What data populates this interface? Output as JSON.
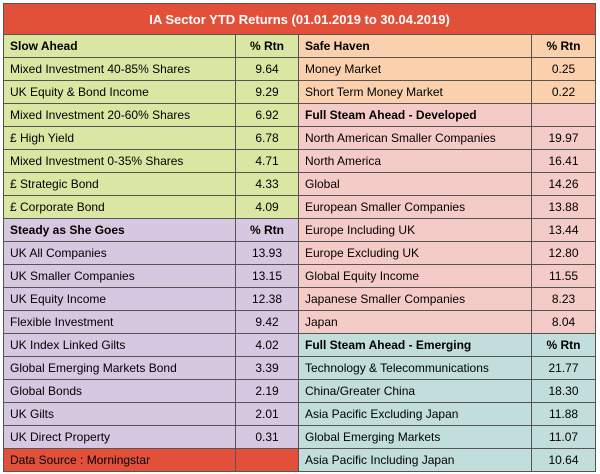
{
  "title": "IA Sector YTD Returns  (01.01.2019 to 30.04.2019)",
  "footer": "Data Source : Morningstar",
  "colors": {
    "title_bg": "#e2503a",
    "slow_ahead": "#d9e7a3",
    "steady": "#d7c8e2",
    "safe_haven": "#fbd0ad",
    "developed": "#f4cbc6",
    "emerging": "#c1dedc"
  },
  "left": [
    {
      "kind": "header",
      "label": "Slow Ahead",
      "rtn": "% Rtn",
      "color": "green"
    },
    {
      "kind": "row",
      "label": "Mixed Investment 40-85% Shares",
      "rtn": "9.64",
      "color": "green"
    },
    {
      "kind": "row",
      "label": "UK Equity & Bond Income",
      "rtn": "9.29",
      "color": "green"
    },
    {
      "kind": "row",
      "label": "Mixed Investment 20-60% Shares",
      "rtn": "6.92",
      "color": "green"
    },
    {
      "kind": "row",
      "label": "£ High Yield",
      "rtn": "6.78",
      "color": "green"
    },
    {
      "kind": "row",
      "label": "Mixed Investment 0-35% Shares",
      "rtn": "4.71",
      "color": "green"
    },
    {
      "kind": "row",
      "label": "£ Strategic Bond",
      "rtn": "4.33",
      "color": "green"
    },
    {
      "kind": "row",
      "label": "£ Corporate Bond",
      "rtn": "4.09",
      "color": "green"
    },
    {
      "kind": "header",
      "label": "Steady as She Goes",
      "rtn": "% Rtn",
      "color": "purple"
    },
    {
      "kind": "row",
      "label": "UK All Companies",
      "rtn": "13.93",
      "color": "purple"
    },
    {
      "kind": "row",
      "label": "UK Smaller Companies",
      "rtn": "13.15",
      "color": "purple"
    },
    {
      "kind": "row",
      "label": "UK Equity Income",
      "rtn": "12.38",
      "color": "purple"
    },
    {
      "kind": "row",
      "label": "Flexible Investment",
      "rtn": "9.42",
      "color": "purple"
    },
    {
      "kind": "row",
      "label": "UK Index Linked Gilts",
      "rtn": "4.02",
      "color": "purple"
    },
    {
      "kind": "row",
      "label": "Global Emerging Markets Bond",
      "rtn": "3.39",
      "color": "purple"
    },
    {
      "kind": "row",
      "label": "Global Bonds",
      "rtn": "2.19",
      "color": "purple"
    },
    {
      "kind": "row",
      "label": "UK Gilts",
      "rtn": "2.01",
      "color": "purple"
    },
    {
      "kind": "row",
      "label": "UK Direct Property",
      "rtn": "0.31",
      "color": "purple"
    },
    {
      "kind": "footer",
      "label": "Data Source : Morningstar",
      "rtn": "",
      "color": "footer"
    }
  ],
  "right": [
    {
      "kind": "header",
      "label": "Safe Haven",
      "rtn": "% Rtn",
      "color": "peach"
    },
    {
      "kind": "row",
      "label": "Money Market",
      "rtn": "0.25",
      "color": "peach"
    },
    {
      "kind": "row",
      "label": "Short Term Money Market",
      "rtn": "0.22",
      "color": "peach"
    },
    {
      "kind": "header",
      "label": "Full Steam Ahead - Developed",
      "rtn": "",
      "color": "pink"
    },
    {
      "kind": "row",
      "label": "North American Smaller Companies",
      "rtn": "19.97",
      "color": "pink"
    },
    {
      "kind": "row",
      "label": "North America",
      "rtn": "16.41",
      "color": "pink"
    },
    {
      "kind": "row",
      "label": "Global",
      "rtn": "14.26",
      "color": "pink"
    },
    {
      "kind": "row",
      "label": "European Smaller Companies",
      "rtn": "13.88",
      "color": "pink"
    },
    {
      "kind": "row",
      "label": "Europe Including UK",
      "rtn": "13.44",
      "color": "pink"
    },
    {
      "kind": "row",
      "label": "Europe Excluding UK",
      "rtn": "12.80",
      "color": "pink"
    },
    {
      "kind": "row",
      "label": "Global Equity Income",
      "rtn": "11.55",
      "color": "pink"
    },
    {
      "kind": "row",
      "label": "Japanese Smaller Companies",
      "rtn": "8.23",
      "color": "pink"
    },
    {
      "kind": "row",
      "label": "Japan",
      "rtn": "8.04",
      "color": "pink"
    },
    {
      "kind": "header",
      "label": "Full Steam Ahead - Emerging",
      "rtn": "% Rtn",
      "color": "teal"
    },
    {
      "kind": "row",
      "label": "Technology & Telecommunications",
      "rtn": "21.77",
      "color": "teal"
    },
    {
      "kind": "row",
      "label": "China/Greater China",
      "rtn": "18.30",
      "color": "teal"
    },
    {
      "kind": "row",
      "label": "Asia Pacific Excluding Japan",
      "rtn": "11.88",
      "color": "teal"
    },
    {
      "kind": "row",
      "label": "Global Emerging Markets",
      "rtn": "11.07",
      "color": "teal"
    },
    {
      "kind": "row",
      "label": "Asia Pacific Including Japan",
      "rtn": "10.64",
      "color": "teal"
    }
  ]
}
